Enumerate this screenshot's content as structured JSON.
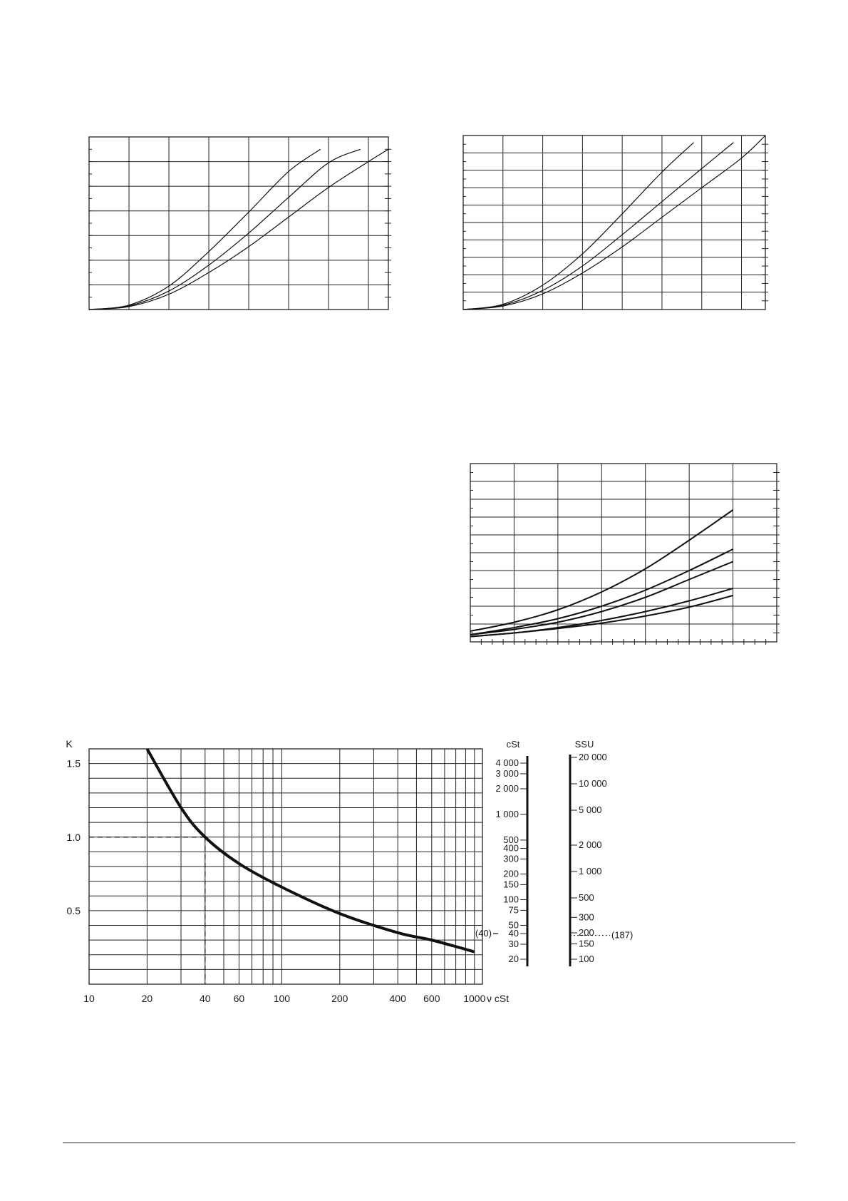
{
  "chart_data": [
    {
      "id": "top-left",
      "type": "line",
      "xlim": [
        0,
        7.5
      ],
      "ylim": [
        0,
        7
      ],
      "grid": true,
      "series": [
        {
          "x": [
            0,
            1,
            2,
            3,
            4,
            5,
            5.8
          ],
          "values": [
            0,
            0.18,
            0.95,
            2.35,
            3.95,
            5.6,
            6.5
          ]
        },
        {
          "x": [
            0,
            1,
            2,
            3,
            4,
            5,
            6,
            6.8
          ],
          "values": [
            0,
            0.15,
            0.75,
            1.8,
            3.1,
            4.55,
            5.95,
            6.5
          ]
        },
        {
          "x": [
            0,
            1,
            2,
            3,
            4,
            5,
            6,
            7,
            7.5
          ],
          "values": [
            0,
            0.12,
            0.62,
            1.5,
            2.55,
            3.75,
            4.95,
            6.0,
            6.5
          ]
        }
      ]
    },
    {
      "id": "top-right",
      "type": "line",
      "xlim": [
        0,
        7.6
      ],
      "ylim": [
        0,
        10
      ],
      "grid": true,
      "series": [
        {
          "x": [
            0,
            1,
            2,
            3,
            4,
            5,
            5.8
          ],
          "values": [
            0,
            0.3,
            1.4,
            3.2,
            5.5,
            7.9,
            9.6
          ]
        },
        {
          "x": [
            0,
            1,
            2,
            3,
            4,
            5,
            6,
            6.8
          ],
          "values": [
            0,
            0.25,
            1.1,
            2.5,
            4.3,
            6.2,
            8.1,
            9.6
          ]
        },
        {
          "x": [
            0,
            1,
            2,
            3,
            4,
            5,
            6,
            7,
            7.6
          ],
          "values": [
            0,
            0.2,
            0.9,
            2.1,
            3.6,
            5.3,
            7.0,
            8.7,
            10
          ]
        }
      ]
    },
    {
      "id": "middle-right",
      "type": "line",
      "xlim": [
        0,
        7
      ],
      "ylim": [
        0,
        10
      ],
      "grid": true,
      "series": [
        {
          "x": [
            0,
            1,
            2,
            3,
            4,
            5,
            6
          ],
          "values": [
            0.6,
            1.1,
            1.8,
            2.8,
            4.1,
            5.7,
            7.4
          ]
        },
        {
          "x": [
            0,
            1,
            2,
            3,
            4,
            5,
            6
          ],
          "values": [
            0.4,
            0.8,
            1.3,
            2.0,
            2.9,
            4.0,
            5.2
          ]
        },
        {
          "x": [
            0,
            1,
            2,
            3,
            4,
            5,
            6
          ],
          "values": [
            0.4,
            0.7,
            1.1,
            1.7,
            2.5,
            3.5,
            4.5
          ]
        },
        {
          "x": [
            0,
            1,
            2,
            3,
            4,
            5,
            6
          ],
          "values": [
            0.3,
            0.5,
            0.8,
            1.2,
            1.7,
            2.3,
            3.0
          ]
        },
        {
          "x": [
            0,
            1,
            2,
            3,
            4,
            5,
            6
          ],
          "values": [
            0.3,
            0.5,
            0.75,
            1.05,
            1.45,
            1.95,
            2.6
          ]
        }
      ]
    },
    {
      "id": "viscosity-correction",
      "type": "line",
      "x_scale": "log",
      "xlim": [
        10,
        1100
      ],
      "ylim": [
        0,
        1.6
      ],
      "grid": true,
      "ylabel": "K",
      "xlabel": "ν cSt",
      "x_ticks": [
        "10",
        "20",
        "40",
        "60",
        "100",
        "200",
        "400",
        "600",
        "1000"
      ],
      "y_ticks": [
        "0.5",
        "1.0",
        "1.5"
      ],
      "series": [
        {
          "x": [
            20,
            30,
            40,
            60,
            100,
            200,
            400,
            600,
            1000
          ],
          "values": [
            1.6,
            1.2,
            1.0,
            0.82,
            0.66,
            0.48,
            0.35,
            0.3,
            0.22
          ]
        }
      ],
      "reference": {
        "x": 40,
        "y": 1.0
      }
    }
  ],
  "scale": {
    "cst_title": "cSt",
    "ssu_title": "SSU",
    "cst_ticks": [
      {
        "v": 4000,
        "label": "4 000"
      },
      {
        "v": 3000,
        "label": "3 000"
      },
      {
        "v": 2000,
        "label": "2 000"
      },
      {
        "v": 1000,
        "label": "1 000"
      },
      {
        "v": 500,
        "label": "500"
      },
      {
        "v": 400,
        "label": "400"
      },
      {
        "v": 300,
        "label": "300"
      },
      {
        "v": 200,
        "label": "200"
      },
      {
        "v": 150,
        "label": "150"
      },
      {
        "v": 100,
        "label": "100"
      },
      {
        "v": 75,
        "label": "75"
      },
      {
        "v": 50,
        "label": "50"
      },
      {
        "v": 40,
        "label": "40"
      },
      {
        "v": 30,
        "label": "30"
      },
      {
        "v": 20,
        "label": "20"
      }
    ],
    "ssu_ticks": [
      {
        "v": 20000,
        "label": "20 000"
      },
      {
        "v": 10000,
        "label": "10 000"
      },
      {
        "v": 5000,
        "label": "5 000"
      },
      {
        "v": 2000,
        "label": "2 000"
      },
      {
        "v": 1000,
        "label": "1 000"
      },
      {
        "v": 500,
        "label": "500"
      },
      {
        "v": 300,
        "label": "300"
      },
      {
        "v": 200,
        "label": "200"
      },
      {
        "v": 150,
        "label": "150"
      },
      {
        "v": 100,
        "label": "100"
      }
    ],
    "example_cst": "(40)",
    "example_ssu": "(187)"
  }
}
